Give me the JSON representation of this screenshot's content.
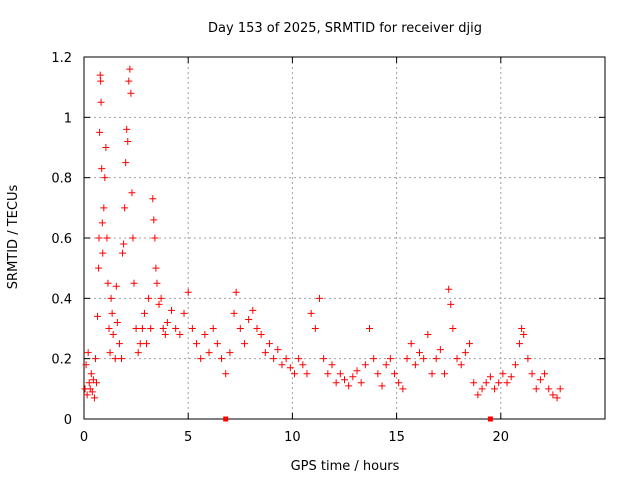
{
  "chart_data": {
    "type": "scatter",
    "title": "Day 153 of 2025, SRMTID for receiver djig",
    "xlabel": "GPS time / hours",
    "ylabel": "SRMTID / TECUs",
    "xlim": [
      0,
      25
    ],
    "ylim": [
      0,
      1.2
    ],
    "xticks": [
      0,
      5,
      10,
      15,
      20
    ],
    "xtick_labels": [
      "0",
      "5",
      "10",
      "15",
      "20"
    ],
    "yticks": [
      0,
      0.2,
      0.4,
      0.6,
      0.8,
      1,
      1.2
    ],
    "ytick_labels": [
      "0",
      "0.2",
      "0.4",
      "0.6",
      "0.8",
      "1",
      "1.2"
    ],
    "grid": true,
    "marker": "+",
    "color": "#ff0000",
    "series": [
      {
        "name": "SRMTID",
        "points": [
          [
            0.05,
            0.1
          ],
          [
            0.1,
            0.18
          ],
          [
            0.15,
            0.08
          ],
          [
            0.2,
            0.22
          ],
          [
            0.25,
            0.12
          ],
          [
            0.3,
            0.1
          ],
          [
            0.35,
            0.15
          ],
          [
            0.4,
            0.09
          ],
          [
            0.45,
            0.13
          ],
          [
            0.5,
            0.07
          ],
          [
            0.55,
            0.2
          ],
          [
            0.6,
            0.12
          ],
          [
            0.65,
            0.34
          ],
          [
            0.7,
            0.5
          ],
          [
            0.72,
            0.6
          ],
          [
            0.75,
            0.95
          ],
          [
            0.78,
            1.14
          ],
          [
            0.8,
            1.12
          ],
          [
            0.82,
            1.05
          ],
          [
            0.85,
            0.83
          ],
          [
            0.88,
            0.65
          ],
          [
            0.9,
            0.55
          ],
          [
            0.95,
            0.7
          ],
          [
            1.0,
            0.8
          ],
          [
            1.05,
            0.9
          ],
          [
            1.1,
            0.6
          ],
          [
            1.15,
            0.45
          ],
          [
            1.2,
            0.3
          ],
          [
            1.25,
            0.22
          ],
          [
            1.3,
            0.4
          ],
          [
            1.35,
            0.35
          ],
          [
            1.4,
            0.28
          ],
          [
            1.5,
            0.2
          ],
          [
            1.55,
            0.44
          ],
          [
            1.6,
            0.32
          ],
          [
            1.7,
            0.25
          ],
          [
            1.8,
            0.2
          ],
          [
            1.85,
            0.55
          ],
          [
            1.9,
            0.58
          ],
          [
            1.95,
            0.7
          ],
          [
            2.0,
            0.85
          ],
          [
            2.05,
            0.96
          ],
          [
            2.1,
            0.92
          ],
          [
            2.15,
            1.12
          ],
          [
            2.2,
            1.16
          ],
          [
            2.25,
            1.08
          ],
          [
            2.3,
            0.75
          ],
          [
            2.35,
            0.6
          ],
          [
            2.4,
            0.45
          ],
          [
            2.5,
            0.3
          ],
          [
            2.6,
            0.22
          ],
          [
            2.7,
            0.25
          ],
          [
            2.8,
            0.3
          ],
          [
            2.9,
            0.35
          ],
          [
            3.0,
            0.25
          ],
          [
            3.1,
            0.4
          ],
          [
            3.2,
            0.3
          ],
          [
            3.3,
            0.73
          ],
          [
            3.35,
            0.66
          ],
          [
            3.4,
            0.6
          ],
          [
            3.45,
            0.5
          ],
          [
            3.5,
            0.45
          ],
          [
            3.6,
            0.38
          ],
          [
            3.7,
            0.4
          ],
          [
            3.8,
            0.3
          ],
          [
            3.9,
            0.28
          ],
          [
            4.0,
            0.32
          ],
          [
            4.2,
            0.36
          ],
          [
            4.4,
            0.3
          ],
          [
            4.6,
            0.28
          ],
          [
            4.8,
            0.35
          ],
          [
            5.0,
            0.42
          ],
          [
            5.2,
            0.3
          ],
          [
            5.4,
            0.25
          ],
          [
            5.6,
            0.2
          ],
          [
            5.8,
            0.28
          ],
          [
            6.0,
            0.22
          ],
          [
            6.2,
            0.3
          ],
          [
            6.4,
            0.25
          ],
          [
            6.6,
            0.2
          ],
          [
            6.8,
            0.15
          ],
          [
            7.0,
            0.22
          ],
          [
            7.2,
            0.35
          ],
          [
            7.3,
            0.42
          ],
          [
            7.5,
            0.3
          ],
          [
            7.7,
            0.25
          ],
          [
            7.9,
            0.33
          ],
          [
            8.1,
            0.36
          ],
          [
            8.3,
            0.3
          ],
          [
            8.5,
            0.28
          ],
          [
            8.7,
            0.22
          ],
          [
            8.9,
            0.25
          ],
          [
            9.1,
            0.2
          ],
          [
            9.3,
            0.23
          ],
          [
            9.5,
            0.18
          ],
          [
            9.7,
            0.2
          ],
          [
            9.9,
            0.17
          ],
          [
            10.1,
            0.15
          ],
          [
            10.3,
            0.2
          ],
          [
            10.5,
            0.18
          ],
          [
            10.7,
            0.15
          ],
          [
            10.9,
            0.35
          ],
          [
            11.1,
            0.3
          ],
          [
            11.3,
            0.4
          ],
          [
            11.5,
            0.2
          ],
          [
            11.7,
            0.15
          ],
          [
            11.9,
            0.18
          ],
          [
            12.1,
            0.12
          ],
          [
            12.3,
            0.15
          ],
          [
            12.5,
            0.13
          ],
          [
            12.7,
            0.11
          ],
          [
            12.9,
            0.14
          ],
          [
            13.1,
            0.16
          ],
          [
            13.3,
            0.12
          ],
          [
            13.5,
            0.18
          ],
          [
            13.7,
            0.3
          ],
          [
            13.9,
            0.2
          ],
          [
            14.1,
            0.15
          ],
          [
            14.3,
            0.11
          ],
          [
            14.5,
            0.18
          ],
          [
            14.7,
            0.2
          ],
          [
            14.9,
            0.15
          ],
          [
            15.1,
            0.12
          ],
          [
            15.3,
            0.1
          ],
          [
            15.5,
            0.2
          ],
          [
            15.7,
            0.25
          ],
          [
            15.9,
            0.18
          ],
          [
            16.1,
            0.22
          ],
          [
            16.3,
            0.2
          ],
          [
            16.5,
            0.28
          ],
          [
            16.7,
            0.15
          ],
          [
            16.9,
            0.2
          ],
          [
            17.1,
            0.23
          ],
          [
            17.3,
            0.15
          ],
          [
            17.5,
            0.43
          ],
          [
            17.6,
            0.38
          ],
          [
            17.7,
            0.3
          ],
          [
            17.9,
            0.2
          ],
          [
            18.1,
            0.18
          ],
          [
            18.3,
            0.22
          ],
          [
            18.5,
            0.25
          ],
          [
            18.7,
            0.12
          ],
          [
            18.9,
            0.08
          ],
          [
            19.1,
            0.1
          ],
          [
            19.3,
            0.12
          ],
          [
            19.5,
            0.14
          ],
          [
            19.7,
            0.1
          ],
          [
            19.9,
            0.12
          ],
          [
            20.1,
            0.15
          ],
          [
            20.3,
            0.12
          ],
          [
            20.5,
            0.14
          ],
          [
            20.7,
            0.18
          ],
          [
            20.9,
            0.25
          ],
          [
            21.0,
            0.3
          ],
          [
            21.1,
            0.28
          ],
          [
            21.3,
            0.2
          ],
          [
            21.5,
            0.15
          ],
          [
            21.7,
            0.1
          ],
          [
            21.9,
            0.13
          ],
          [
            22.1,
            0.15
          ],
          [
            22.3,
            0.1
          ],
          [
            22.5,
            0.08
          ],
          [
            22.7,
            0.07
          ],
          [
            22.85,
            0.1
          ]
        ]
      }
    ],
    "zero_markers": [
      6.8,
      19.5
    ]
  }
}
